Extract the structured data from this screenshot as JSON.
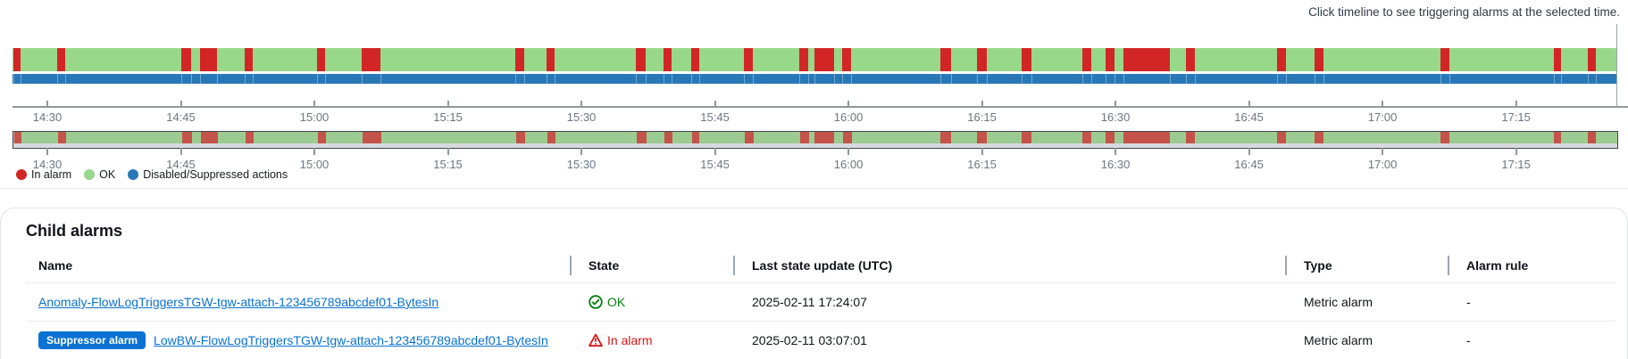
{
  "hint": "Click timeline to see triggering alarms at the selected time.",
  "timeline": {
    "tick_labels": [
      "14:30",
      "14:45",
      "15:00",
      "15:15",
      "15:30",
      "15:45",
      "16:00",
      "16:15",
      "16:30",
      "16:45",
      "17:00",
      "17:15"
    ],
    "tick_positions_pct": [
      2.17,
      10.49,
      18.81,
      27.13,
      35.45,
      43.77,
      52.09,
      60.41,
      68.73,
      77.05,
      85.37,
      93.69
    ],
    "alarm_segments_pct": [
      [
        0.06,
        0.45
      ],
      [
        2.78,
        0.5
      ],
      [
        10.52,
        0.61
      ],
      [
        11.69,
        1.06
      ],
      [
        14.47,
        0.5
      ],
      [
        18.98,
        0.5
      ],
      [
        21.76,
        1.17
      ],
      [
        31.33,
        0.56
      ],
      [
        33.28,
        0.5
      ],
      [
        38.84,
        0.61
      ],
      [
        40.57,
        0.5
      ],
      [
        42.29,
        0.5
      ],
      [
        45.58,
        0.56
      ],
      [
        49.03,
        0.56
      ],
      [
        49.97,
        1.22
      ],
      [
        51.7,
        0.56
      ],
      [
        57.82,
        0.67
      ],
      [
        60.1,
        0.61
      ],
      [
        62.88,
        0.61
      ],
      [
        66.67,
        0.56
      ],
      [
        68.11,
        0.56
      ],
      [
        69.23,
        2.89
      ],
      [
        73.12,
        0.56
      ],
      [
        78.8,
        0.56
      ],
      [
        81.13,
        0.56
      ],
      [
        88.98,
        0.56
      ],
      [
        96.05,
        0.45
      ],
      [
        98.16,
        0.5
      ]
    ],
    "colors": {
      "ok": "#98d88b",
      "alarm": "#d22626",
      "suppressed": "#2878b8",
      "mini_ok": "#9ccb92",
      "mini_alarm": "#c4534a"
    },
    "legend": [
      {
        "label": "In alarm",
        "color": "#d22626"
      },
      {
        "label": "OK",
        "color": "#98d88b"
      },
      {
        "label": "Disabled/Suppressed actions",
        "color": "#2878b8"
      }
    ]
  },
  "child_alarms": {
    "title": "Child alarms",
    "columns": [
      "Name",
      "State",
      "Last state update (UTC)",
      "Type",
      "Alarm rule"
    ],
    "rows": [
      {
        "badge": null,
        "name": "Anomaly-FlowLogTriggersTGW-tgw-attach-123456789abcdef01-BytesIn",
        "state": "OK",
        "state_type": "ok",
        "last_update": "2025-02-11 17:24:07",
        "type": "Metric alarm",
        "alarm_rule": "-"
      },
      {
        "badge": "Suppressor alarm",
        "name": "LowBW-FlowLogTriggersTGW-tgw-attach-123456789abcdef01-BytesIn",
        "state": "In alarm",
        "state_type": "alarm",
        "last_update": "2025-02-11 03:07:01",
        "type": "Metric alarm",
        "alarm_rule": "-"
      }
    ]
  }
}
